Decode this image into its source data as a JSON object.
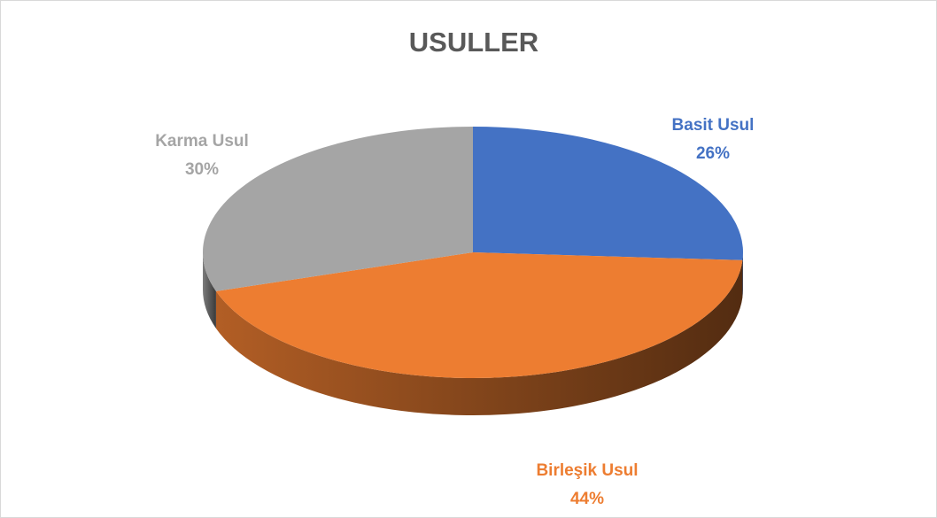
{
  "chart_data": {
    "type": "pie",
    "title": "USULLER",
    "categories": [
      "Basit Usul",
      "Birleşik Usul",
      "Karma Usul"
    ],
    "values": [
      26,
      44,
      30
    ],
    "value_labels": [
      "26%",
      "44%",
      "30%"
    ],
    "colors": [
      "#4472c4",
      "#ed7d31",
      "#a5a5a5"
    ]
  }
}
